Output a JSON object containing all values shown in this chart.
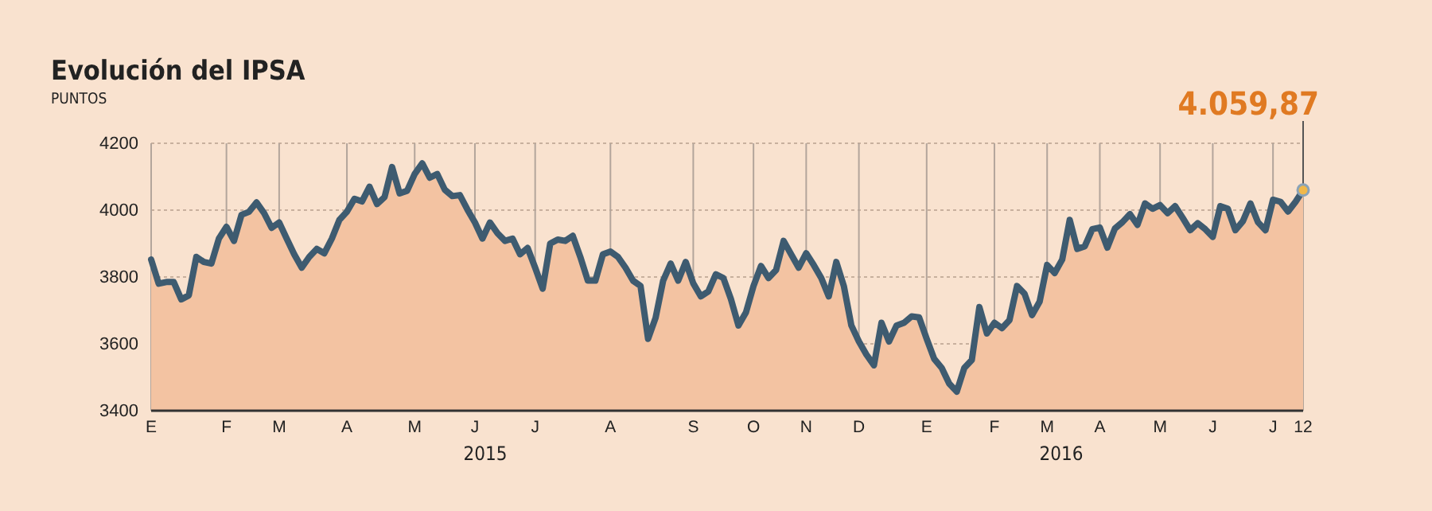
{
  "chart_data": {
    "type": "area",
    "title": "Evolución del IPSA",
    "subtitle": "PUNTOS",
    "categories": [
      "E",
      null,
      null,
      null,
      null,
      null,
      null,
      null,
      null,
      null,
      "F",
      null,
      null,
      null,
      null,
      null,
      null,
      "M",
      null,
      null,
      null,
      null,
      null,
      null,
      null,
      null,
      "A",
      null,
      null,
      null,
      null,
      null,
      null,
      null,
      null,
      "M",
      null,
      null,
      null,
      null,
      null,
      null,
      null,
      "J",
      null,
      null,
      null,
      null,
      null,
      null,
      null,
      "J",
      null,
      null,
      null,
      null,
      null,
      null,
      null,
      null,
      null,
      "A",
      null,
      null,
      null,
      null,
      null,
      null,
      null,
      null,
      null,
      null,
      "S",
      null,
      null,
      null,
      null,
      null,
      null,
      null,
      "O",
      null,
      null,
      null,
      null,
      null,
      null,
      "N",
      null,
      null,
      null,
      null,
      null,
      null,
      "D",
      null,
      null,
      null,
      null,
      null,
      null,
      null,
      null,
      "E",
      null,
      null,
      null,
      null,
      null,
      null,
      null,
      null,
      "F",
      null,
      null,
      null,
      null,
      null,
      null,
      "M",
      null,
      null,
      null,
      null,
      null,
      null,
      "A",
      null,
      null,
      null,
      null,
      null,
      null,
      null,
      "M",
      null,
      null,
      null,
      null,
      null,
      null,
      "J",
      null,
      null,
      null,
      null,
      null,
      null,
      null,
      "J",
      null,
      null,
      null,
      "12"
    ],
    "series": [
      {
        "color": "#f3c3a2",
        "values": [
          3852,
          3780,
          3785,
          3785,
          3733,
          3745,
          3860,
          3845,
          3840,
          3915,
          3950,
          3908,
          3986,
          3995,
          4023,
          3991,
          3947,
          3963,
          3915,
          3868,
          3828,
          3860,
          3884,
          3871,
          3915,
          3971,
          3995,
          4034,
          4026,
          4070,
          4018,
          4039,
          4129,
          4050,
          4058,
          4108,
          4140,
          4097,
          4108,
          4061,
          4042,
          4045,
          4002,
          3963,
          3915,
          3963,
          3931,
          3908,
          3915,
          3868,
          3887,
          3828,
          3765,
          3900,
          3912,
          3908,
          3923,
          3860,
          3789,
          3789,
          3868,
          3876,
          3860,
          3828,
          3789,
          3773,
          3615,
          3678,
          3789,
          3840,
          3789,
          3845,
          3781,
          3742,
          3757,
          3808,
          3797,
          3734,
          3655,
          3694,
          3773,
          3833,
          3797,
          3821,
          3908,
          3868,
          3828,
          3871,
          3836,
          3797,
          3742,
          3845,
          3773,
          3655,
          3607,
          3568,
          3536,
          3663,
          3607,
          3655,
          3663,
          3682,
          3679,
          3615,
          3555,
          3528,
          3481,
          3457,
          3528,
          3552,
          3710,
          3631,
          3663,
          3647,
          3671,
          3773,
          3750,
          3686,
          3726,
          3836,
          3812,
          3852,
          3971,
          3884,
          3892,
          3943,
          3948,
          3888,
          3945,
          3964,
          3988,
          3956,
          4020,
          4004,
          4015,
          3991,
          4012,
          3977,
          3940,
          3961,
          3943,
          3920,
          4012,
          4004,
          3940,
          3967,
          4020,
          3964,
          3940,
          4031,
          4025,
          3996,
          4025,
          4059.87
        ]
      },
      {
        "type": "line",
        "color": "#3e5b70",
        "values": [
          3852,
          3780,
          3785,
          3785,
          3733,
          3745,
          3860,
          3845,
          3840,
          3915,
          3950,
          3908,
          3986,
          3995,
          4023,
          3991,
          3947,
          3963,
          3915,
          3868,
          3828,
          3860,
          3884,
          3871,
          3915,
          3971,
          3995,
          4034,
          4026,
          4070,
          4018,
          4039,
          4129,
          4050,
          4058,
          4108,
          4140,
          4097,
          4108,
          4061,
          4042,
          4045,
          4002,
          3963,
          3915,
          3963,
          3931,
          3908,
          3915,
          3868,
          3887,
          3828,
          3765,
          3900,
          3912,
          3908,
          3923,
          3860,
          3789,
          3789,
          3868,
          3876,
          3860,
          3828,
          3789,
          3773,
          3615,
          3678,
          3789,
          3840,
          3789,
          3845,
          3781,
          3742,
          3757,
          3808,
          3797,
          3734,
          3655,
          3694,
          3773,
          3833,
          3797,
          3821,
          3908,
          3868,
          3828,
          3871,
          3836,
          3797,
          3742,
          3845,
          3773,
          3655,
          3607,
          3568,
          3536,
          3663,
          3607,
          3655,
          3663,
          3682,
          3679,
          3615,
          3555,
          3528,
          3481,
          3457,
          3528,
          3552,
          3710,
          3631,
          3663,
          3647,
          3671,
          3773,
          3750,
          3686,
          3726,
          3836,
          3812,
          3852,
          3971,
          3884,
          3892,
          3943,
          3948,
          3888,
          3945,
          3964,
          3988,
          3956,
          4020,
          4004,
          4015,
          3991,
          4012,
          3977,
          3940,
          3961,
          3943,
          3920,
          4012,
          4004,
          3940,
          3967,
          4020,
          3964,
          3940,
          4031,
          4025,
          3996,
          4025,
          4059.87
        ]
      }
    ],
    "ylim": [
      3400,
      4200
    ],
    "yticks": [
      3400,
      3600,
      3800,
      4000,
      4200
    ],
    "grid": true,
    "annotations": [
      {
        "text": "4.059,87",
        "x": "12",
        "y": 4059.87
      },
      "2015",
      "2016"
    ]
  }
}
